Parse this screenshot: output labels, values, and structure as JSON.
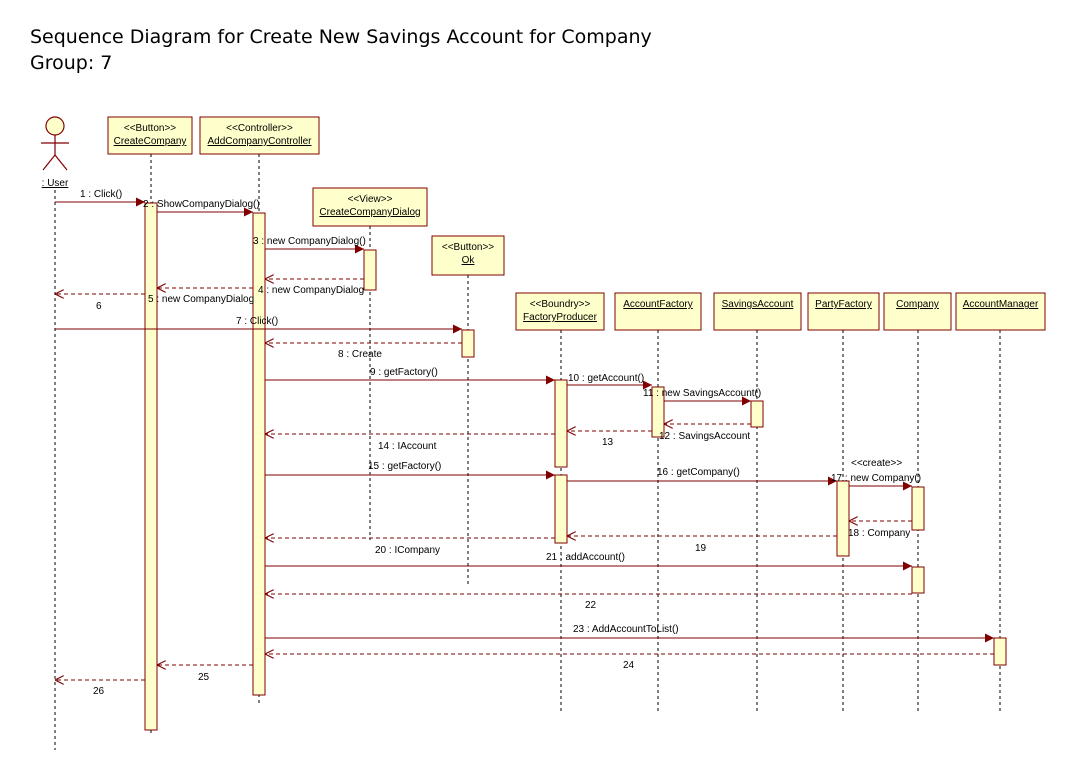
{
  "diagram": {
    "title": "Sequence Diagram for Create New Savings Account for Company",
    "group": "Group: 7",
    "colors": {
      "box_fill": "#FFFFCC",
      "line": "#800000",
      "text": "#000000"
    },
    "actor": {
      "id": "user",
      "name": ": User"
    },
    "lifelines": [
      {
        "id": "btn",
        "stereotype": "<<Button>>",
        "name": "CreateCompany"
      },
      {
        "id": "ctrl",
        "stereotype": "<<Controller>>",
        "name": "AddCompanyController"
      },
      {
        "id": "view",
        "stereotype": "<<View>>",
        "name": "CreateCompanyDialog"
      },
      {
        "id": "ok",
        "stereotype": "<<Button>>",
        "name": "Ok"
      },
      {
        "id": "fp",
        "stereotype": "<<Boundry>>",
        "name": "FactoryProducer"
      },
      {
        "id": "af",
        "stereotype": "",
        "name": "AccountFactory"
      },
      {
        "id": "sa",
        "stereotype": "",
        "name": "SavingsAccount"
      },
      {
        "id": "pf",
        "stereotype": "",
        "name": "PartyFactory"
      },
      {
        "id": "co",
        "stereotype": "",
        "name": "Company"
      },
      {
        "id": "am",
        "stereotype": "",
        "name": "AccountManager"
      }
    ],
    "messages": [
      {
        "label": "1 : Click()",
        "from": "user",
        "to": "btn",
        "kind": "call"
      },
      {
        "label": "2 : ShowCompanyDialog()",
        "from": "btn",
        "to": "ctrl",
        "kind": "call"
      },
      {
        "label": "3 : new CompanyDialog()",
        "from": "ctrl",
        "to": "view",
        "kind": "call"
      },
      {
        "label": "4 : new CompanyDialog",
        "from": "view",
        "to": "ctrl",
        "kind": "return"
      },
      {
        "label": "5 : new CompanyDialog",
        "from": "ctrl",
        "to": "btn",
        "kind": "return"
      },
      {
        "label": "6",
        "from": "btn",
        "to": "user",
        "kind": "return"
      },
      {
        "label": "7 : Click()",
        "from": "user",
        "to": "ok",
        "kind": "call"
      },
      {
        "label": "8 : Create",
        "from": "ok",
        "to": "ctrl",
        "kind": "return"
      },
      {
        "label": "9 : getFactory()",
        "from": "ctrl",
        "to": "fp",
        "kind": "call"
      },
      {
        "label": "10 : getAccount()",
        "from": "fp",
        "to": "af",
        "kind": "call"
      },
      {
        "label": "11 : new SavingsAccount()",
        "from": "af",
        "to": "sa",
        "kind": "call"
      },
      {
        "label": "12 : SavingsAccount",
        "from": "sa",
        "to": "af",
        "kind": "return"
      },
      {
        "label": "13",
        "from": "af",
        "to": "fp",
        "kind": "return"
      },
      {
        "label": "14 : IAccount",
        "from": "fp",
        "to": "ctrl",
        "kind": "return"
      },
      {
        "label": "15 : getFactory()",
        "from": "ctrl",
        "to": "fp",
        "kind": "call"
      },
      {
        "label": "16 : getCompany()",
        "from": "fp",
        "to": "pf",
        "kind": "call"
      },
      {
        "label": "17 : new Company()",
        "from": "pf",
        "to": "co",
        "kind": "call",
        "stereotype": "<<create>>"
      },
      {
        "label": "18 : Company",
        "from": "co",
        "to": "pf",
        "kind": "return"
      },
      {
        "label": "19",
        "from": "pf",
        "to": "fp",
        "kind": "return"
      },
      {
        "label": "20 : ICompany",
        "from": "fp",
        "to": "ctrl",
        "kind": "return"
      },
      {
        "label": "21 : addAccount()",
        "from": "ctrl",
        "to": "co",
        "kind": "call"
      },
      {
        "label": "22",
        "from": "co",
        "to": "ctrl",
        "kind": "return"
      },
      {
        "label": "23 : AddAccountToList()",
        "from": "ctrl",
        "to": "am",
        "kind": "call"
      },
      {
        "label": "24",
        "from": "am",
        "to": "ctrl",
        "kind": "return"
      },
      {
        "label": "25",
        "from": "ctrl",
        "to": "btn",
        "kind": "return"
      },
      {
        "label": "26",
        "from": "btn",
        "to": "user",
        "kind": "return"
      }
    ]
  }
}
